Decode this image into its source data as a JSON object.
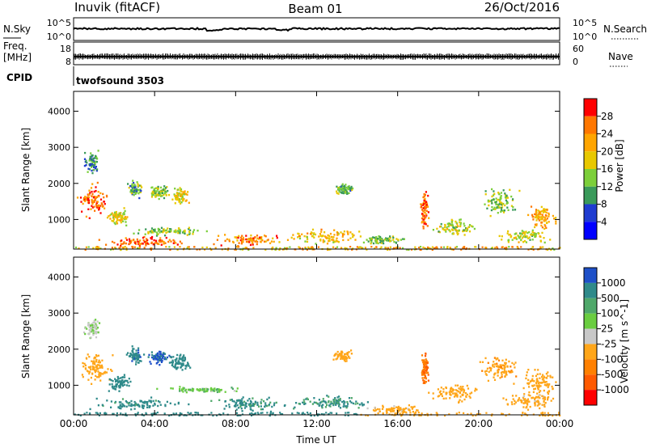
{
  "header": {
    "title": "Inuvik (fitACF)",
    "beam": "Beam 01",
    "date": "26/Oct/2016"
  },
  "top_panels": {
    "nsky_label": "N.Sky",
    "nsearch_label": "N.Search",
    "noise_ticks_left": [
      "10^5",
      "10^0"
    ],
    "noise_ticks_right": [
      "10^5",
      "10^0"
    ],
    "freq_label_line1": "Freq.",
    "freq_label_line2": "[MHz]",
    "freq_ticks": [
      "18",
      "8"
    ],
    "nave_label": "Nave",
    "nave_ticks": [
      "60",
      "0"
    ],
    "cpid_label": "CPID",
    "cpid_value": "twofsound 3503"
  },
  "colorbars": {
    "power": {
      "title": "Power [dB]",
      "ticks": [
        "28",
        "24",
        "20",
        "16",
        "12",
        "8",
        "4"
      ],
      "colors": [
        "#ff0000",
        "#ff7700",
        "#ffa500",
        "#e8c800",
        "#7ccf3a",
        "#3a9a5a",
        "#1f3cd1",
        "#0000ff"
      ]
    },
    "velocity": {
      "title": "Velocity [m s^-1]",
      "ticks": [
        "1000",
        "500",
        "100",
        "25",
        "-25",
        "-100",
        "-500",
        "-1000"
      ],
      "colors": [
        "#1e50c8",
        "#2f8a8a",
        "#4fa86a",
        "#6acd40",
        "#c8c8c8",
        "#ffa61a",
        "#ff8000",
        "#ff5a00",
        "#ff0000"
      ]
    }
  },
  "chart_data": [
    {
      "type": "heatmap",
      "title": "Power [dB]",
      "xlabel": "",
      "ylabel": "Slant Range [km]",
      "xticks": [
        "00:00",
        "04:00",
        "08:00",
        "12:00",
        "16:00",
        "20:00",
        "00:00"
      ],
      "yticks": [
        "1000",
        "2000",
        "3000",
        "4000"
      ],
      "xlim_hours": [
        0,
        24
      ],
      "ylim_km": [
        180,
        4550
      ],
      "clim_db": [
        0,
        32
      ],
      "blobs": [
        {
          "t": 1.0,
          "r": 1550,
          "dt": 1.0,
          "dr": 550,
          "v": 26
        },
        {
          "t": 0.9,
          "r": 2600,
          "dt": 0.5,
          "dr": 400,
          "v": 10
        },
        {
          "t": 2.2,
          "r": 1100,
          "dt": 0.7,
          "dr": 300,
          "v": 18
        },
        {
          "t": 3.0,
          "r": 1850,
          "dt": 0.5,
          "dr": 300,
          "v": 12
        },
        {
          "t": 4.2,
          "r": 1800,
          "dt": 0.7,
          "dr": 250,
          "v": 14
        },
        {
          "t": 5.2,
          "r": 1650,
          "dt": 0.6,
          "dr": 300,
          "v": 18
        },
        {
          "t": 3.3,
          "r": 400,
          "dt": 2.8,
          "dr": 180,
          "v": 27
        },
        {
          "t": 4.5,
          "r": 700,
          "dt": 2.5,
          "dr": 150,
          "v": 14
        },
        {
          "t": 8.5,
          "r": 450,
          "dt": 2.0,
          "dr": 200,
          "v": 24
        },
        {
          "t": 12.5,
          "r": 550,
          "dt": 2.5,
          "dr": 250,
          "v": 20
        },
        {
          "t": 13.3,
          "r": 1850,
          "dt": 0.6,
          "dr": 200,
          "v": 12
        },
        {
          "t": 15.2,
          "r": 450,
          "dt": 1.3,
          "dr": 150,
          "v": 14
        },
        {
          "t": 17.3,
          "r": 1300,
          "dt": 0.25,
          "dr": 650,
          "v": 26
        },
        {
          "t": 18.8,
          "r": 800,
          "dt": 1.4,
          "dr": 300,
          "v": 16
        },
        {
          "t": 21.0,
          "r": 1500,
          "dt": 1.1,
          "dr": 500,
          "v": 14
        },
        {
          "t": 23.1,
          "r": 1050,
          "dt": 0.9,
          "dr": 500,
          "v": 22
        },
        {
          "t": 22.3,
          "r": 550,
          "dt": 1.6,
          "dr": 250,
          "v": 16
        }
      ]
    },
    {
      "type": "heatmap",
      "title": "Velocity [m s^-1]",
      "xlabel": "Time UT",
      "ylabel": "Slant Range [km]",
      "xticks": [
        "00:00",
        "04:00",
        "08:00",
        "12:00",
        "16:00",
        "20:00",
        "00:00"
      ],
      "yticks": [
        "1000",
        "2000",
        "3000",
        "4000"
      ],
      "xlim_hours": [
        0,
        24
      ],
      "ylim_km": [
        180,
        4550
      ],
      "clim_ms": [
        -1000,
        1000
      ],
      "blobs": [
        {
          "t": 1.0,
          "r": 1500,
          "dt": 1.0,
          "dr": 550,
          "v": -300
        },
        {
          "t": 0.9,
          "r": 2600,
          "dt": 0.5,
          "dr": 400,
          "v": -40
        },
        {
          "t": 2.2,
          "r": 1100,
          "dt": 0.7,
          "dr": 300,
          "v": 200
        },
        {
          "t": 3.0,
          "r": 1850,
          "dt": 0.5,
          "dr": 300,
          "v": 400
        },
        {
          "t": 4.2,
          "r": 1800,
          "dt": 0.7,
          "dr": 250,
          "v": 600
        },
        {
          "t": 5.2,
          "r": 1650,
          "dt": 0.6,
          "dr": 300,
          "v": 300
        },
        {
          "t": 3.3,
          "r": 500,
          "dt": 3.0,
          "dr": 200,
          "v": 150
        },
        {
          "t": 8.5,
          "r": 500,
          "dt": 2.5,
          "dr": 250,
          "v": 120
        },
        {
          "t": 12.5,
          "r": 550,
          "dt": 2.5,
          "dr": 250,
          "v": 110
        },
        {
          "t": 13.3,
          "r": 1850,
          "dt": 0.6,
          "dr": 200,
          "v": -300
        },
        {
          "t": 15.8,
          "r": 350,
          "dt": 1.8,
          "dr": 150,
          "v": -150
        },
        {
          "t": 17.3,
          "r": 1500,
          "dt": 0.25,
          "dr": 600,
          "v": -900
        },
        {
          "t": 18.8,
          "r": 800,
          "dt": 1.4,
          "dr": 300,
          "v": -200
        },
        {
          "t": 21.0,
          "r": 1500,
          "dt": 1.1,
          "dr": 500,
          "v": -400
        },
        {
          "t": 23.0,
          "r": 1100,
          "dt": 1.0,
          "dr": 500,
          "v": -250
        },
        {
          "t": 22.5,
          "r": 600,
          "dt": 1.6,
          "dr": 300,
          "v": -150
        },
        {
          "t": 6.2,
          "r": 900,
          "dt": 2.5,
          "dr": 100,
          "v": 0
        }
      ]
    }
  ]
}
